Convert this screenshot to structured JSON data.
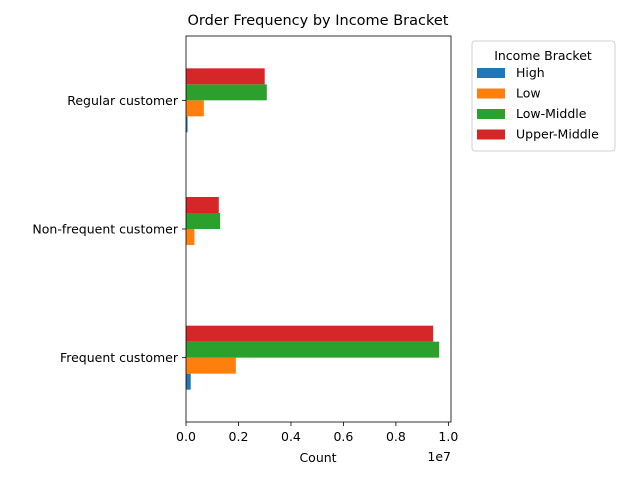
{
  "chart_data": {
    "type": "bar",
    "orientation": "horizontal",
    "title": "Order Frequency by Income Bracket",
    "xlabel": "Count",
    "ylabel": "",
    "x_offset_label": "1e7",
    "xlim": [
      0,
      10100000
    ],
    "x_ticks": [
      0,
      2000000,
      4000000,
      6000000,
      8000000,
      10000000
    ],
    "x_tick_labels": [
      "0.0",
      "0.2",
      "0.4",
      "0.6",
      "0.8",
      "1.0"
    ],
    "categories": [
      "Frequent customer",
      "Non-frequent customer",
      "Regular customer"
    ],
    "series": [
      {
        "name": "High",
        "color": "#1f77b4",
        "values": [
          180000,
          0,
          60000
        ]
      },
      {
        "name": "Low",
        "color": "#ff7f0e",
        "values": [
          1900000,
          320000,
          680000
        ]
      },
      {
        "name": "Low-Middle",
        "color": "#2ca02c",
        "values": [
          9650000,
          1300000,
          3080000
        ]
      },
      {
        "name": "Upper-Middle",
        "color": "#d62728",
        "values": [
          9420000,
          1250000,
          3000000
        ]
      }
    ],
    "legend": {
      "title": "Income Bracket",
      "placement": "outside-top-right"
    },
    "grid": false
  }
}
